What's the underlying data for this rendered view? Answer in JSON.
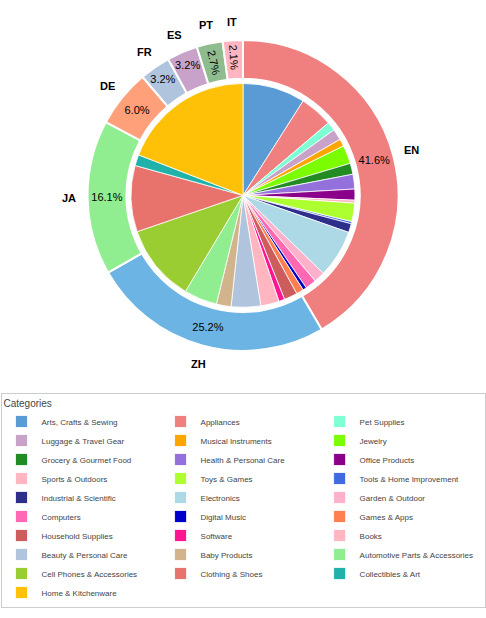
{
  "chart_data": [
    {
      "type": "pie",
      "categories": [
        "EN",
        "ZH",
        "JA",
        "DE",
        "FR",
        "ES",
        "PT",
        "IT"
      ],
      "values": [
        41.6,
        25.2,
        16.1,
        6.0,
        3.2,
        3.2,
        2.7,
        2.1
      ],
      "value_labels": [
        "41.6%",
        "25.2%",
        "16.1%",
        "6.0%",
        "3.2%",
        "3.2%",
        "2.7%",
        "2.1%"
      ],
      "colors": [
        "#F08080",
        "#6CB4E4",
        "#90EE90",
        "#FFA07A",
        "#B0C4DE",
        "#C8A2C8",
        "#8FBC8F",
        "#FFB6C1"
      ],
      "data_labels": true,
      "legend": false
    },
    {
      "type": "pie",
      "categories": [
        "Arts, Crafts & Sewing",
        "Appliances",
        "Pet Supplies",
        "Luggage & Travel Gear",
        "Musical Instruments",
        "Jewelry",
        "Grocery & Gourmet Food",
        "Health & Personal Care",
        "Office Products",
        "Sports & Outdoors",
        "Toys & Games",
        "Tools & Home Improvement",
        "Industrial & Scientific",
        "Electronics",
        "Garden & Outdoor",
        "Computers",
        "Digital Music",
        "Games & Apps",
        "Household Supplies",
        "Software",
        "Books",
        "Beauty & Personal Care",
        "Baby Products",
        "Automotive Parts & Accessories",
        "Cell Phones & Accessories",
        "Clothing & Shoes",
        "Collectibles & Art",
        "Home & Kitchenware"
      ],
      "values": [
        8.5,
        4.5,
        1.2,
        1.5,
        1.0,
        2.5,
        1.5,
        2.0,
        1.5,
        0.4,
        2.5,
        0.3,
        1.2,
        6.5,
        1.5,
        1.5,
        0.5,
        1.0,
        1.8,
        0.8,
        2.5,
        4.0,
        2.0,
        4.5,
        10.5,
        9.0,
        1.5,
        18.0
      ],
      "colors": [
        "#5B9BD5",
        "#F08080",
        "#7FFFD4",
        "#C8A2C8",
        "#FFA500",
        "#7CFC00",
        "#228B22",
        "#9370DB",
        "#8B008B",
        "#FFB6C1",
        "#ADFF2F",
        "#4169E1",
        "#2E2E8B",
        "#ADD8E6",
        "#FFB0CB",
        "#FF69B4",
        "#0000CD",
        "#FF7F50",
        "#CD5C5C",
        "#FF1493",
        "#FFB6C1",
        "#B0C4DE",
        "#D2B48C",
        "#90EE90",
        "#9ACD32",
        "#E8736C",
        "#20B2AA",
        "#FFC107"
      ],
      "data_labels": false,
      "legend": "bottom",
      "legend_title": "Categories"
    }
  ]
}
